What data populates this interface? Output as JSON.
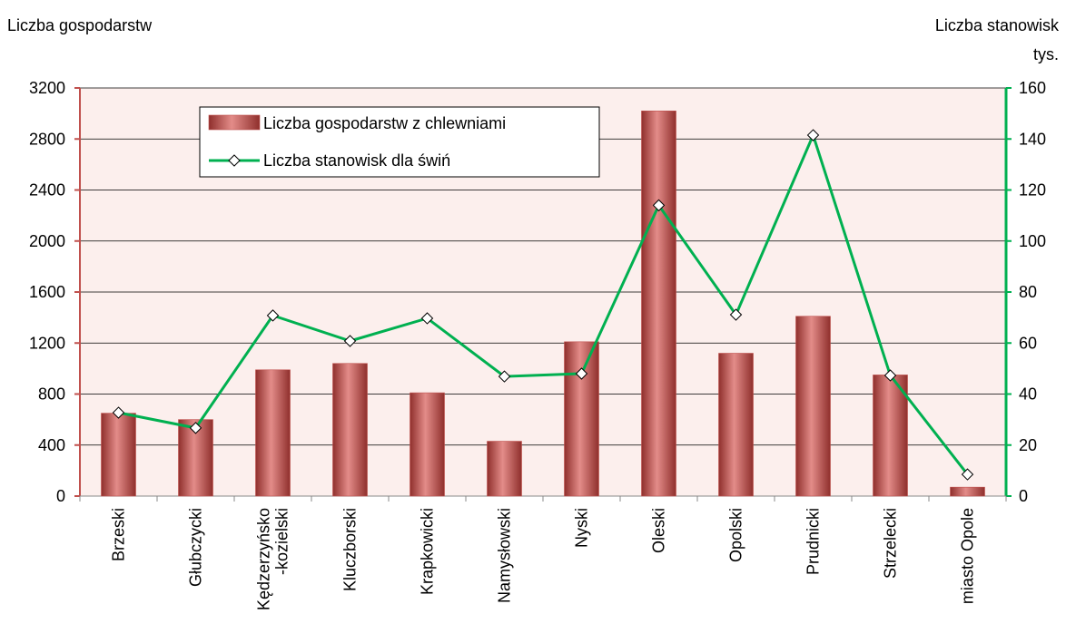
{
  "chart_data": {
    "type": "bar_line",
    "y_label": "Liczba gospodarstw",
    "y2_label": "Liczba stanowisk",
    "y2_unit": "tys.",
    "categories": [
      "Brzeski",
      "Głubczycki",
      "Kędzerzyńsko\n-kozielski",
      "Kluczborski",
      "Krapkowicki",
      "Namysłowski",
      "Nyski",
      "Oleski",
      "Opolski",
      "Prudnicki",
      "Strzelecki",
      "miasto Opole"
    ],
    "series": [
      {
        "name": "Liczba gospodarstw z chlewniami",
        "type": "bar",
        "color": "#c0504d",
        "values": [
          650,
          600,
          990,
          1040,
          810,
          430,
          1210,
          3020,
          1120,
          1410,
          950,
          70
        ]
      },
      {
        "name": "Liczba stanowisk dla świń",
        "type": "line",
        "axis": "y2",
        "color": "#00b050",
        "values": [
          32.7,
          26.7,
          70.8,
          60.8,
          69.7,
          46.9,
          48,
          114,
          71.1,
          141.5,
          47.3,
          8.5
        ]
      }
    ],
    "ylim": [
      0,
      3200
    ],
    "yticks": [
      0,
      400,
      800,
      1200,
      1600,
      2000,
      2400,
      2800,
      3200
    ],
    "y2lim": [
      0,
      160
    ],
    "y2ticks": [
      0,
      20,
      40,
      60,
      80,
      100,
      120,
      140,
      160
    ],
    "grid": true,
    "legend": "top-left"
  }
}
